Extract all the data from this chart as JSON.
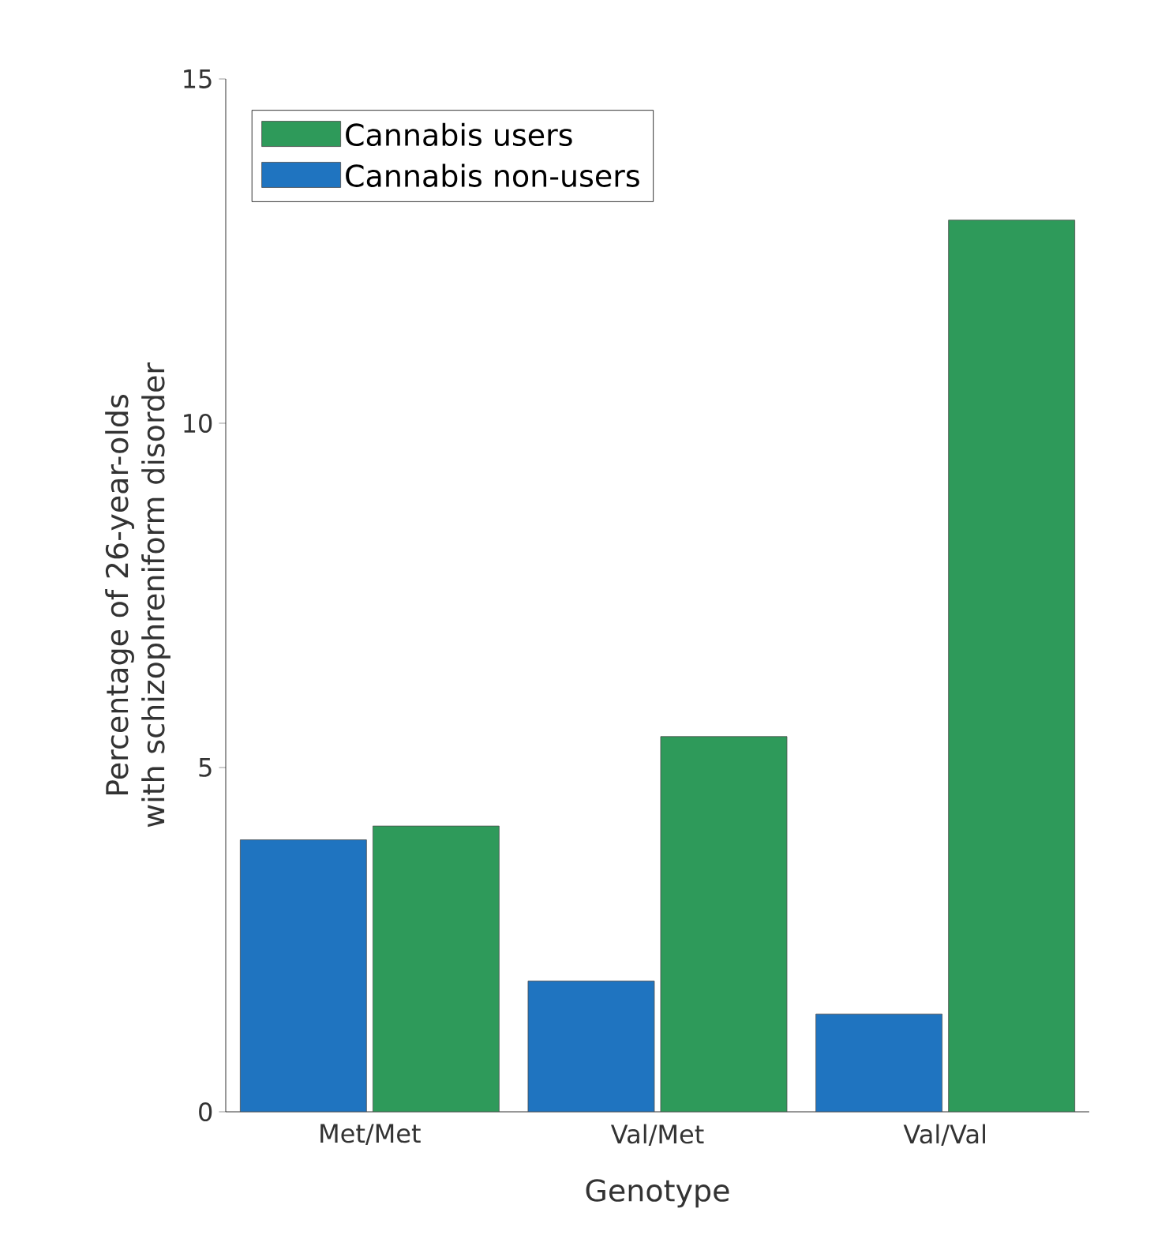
{
  "chart_data": {
    "type": "bar",
    "xlabel": "Genotype",
    "ylabel": "Percentage of 26-year-olds with schizophreniform disorder",
    "categories": [
      "Met/Met",
      "Val/Met",
      "Val/Val"
    ],
    "series": [
      {
        "name": "Cannabis non-users",
        "color": "#1f74c0",
        "values": [
          3.95,
          1.9,
          1.42
        ]
      },
      {
        "name": "Cannabis users",
        "color": "#2e9a5a",
        "values": [
          4.15,
          5.45,
          12.95
        ]
      }
    ],
    "ylim": [
      0,
      15
    ],
    "yticks": [
      0,
      5,
      10,
      15
    ],
    "legend": "top left"
  }
}
